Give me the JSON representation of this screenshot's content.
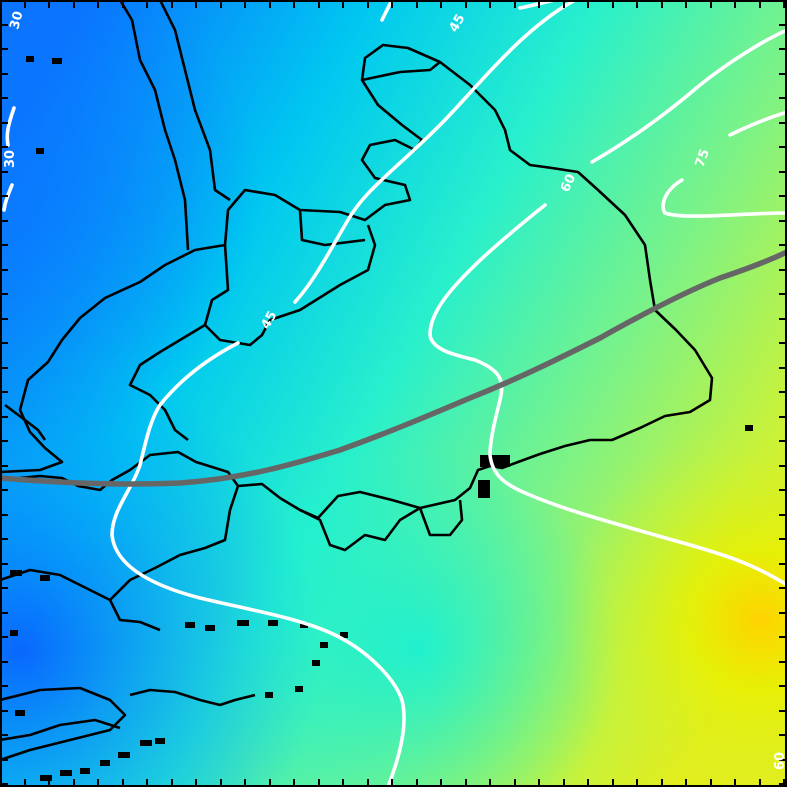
{
  "map": {
    "colors": {
      "contour": "#ffffff",
      "track": "#5f5f5f",
      "coast": "#000000",
      "field_low": "#0066ff",
      "field_mid": "#00e6e6",
      "field_high": "#ffcc00"
    },
    "contour_labels": [
      {
        "id": "label-30-top",
        "text": "30"
      },
      {
        "id": "label-30-left",
        "text": "30"
      },
      {
        "id": "label-45-top",
        "text": "45"
      },
      {
        "id": "label-45-mid",
        "text": "45"
      },
      {
        "id": "label-60",
        "text": "60"
      },
      {
        "id": "label-75",
        "text": "75"
      },
      {
        "id": "label-60-corner",
        "text": "60"
      }
    ]
  }
}
